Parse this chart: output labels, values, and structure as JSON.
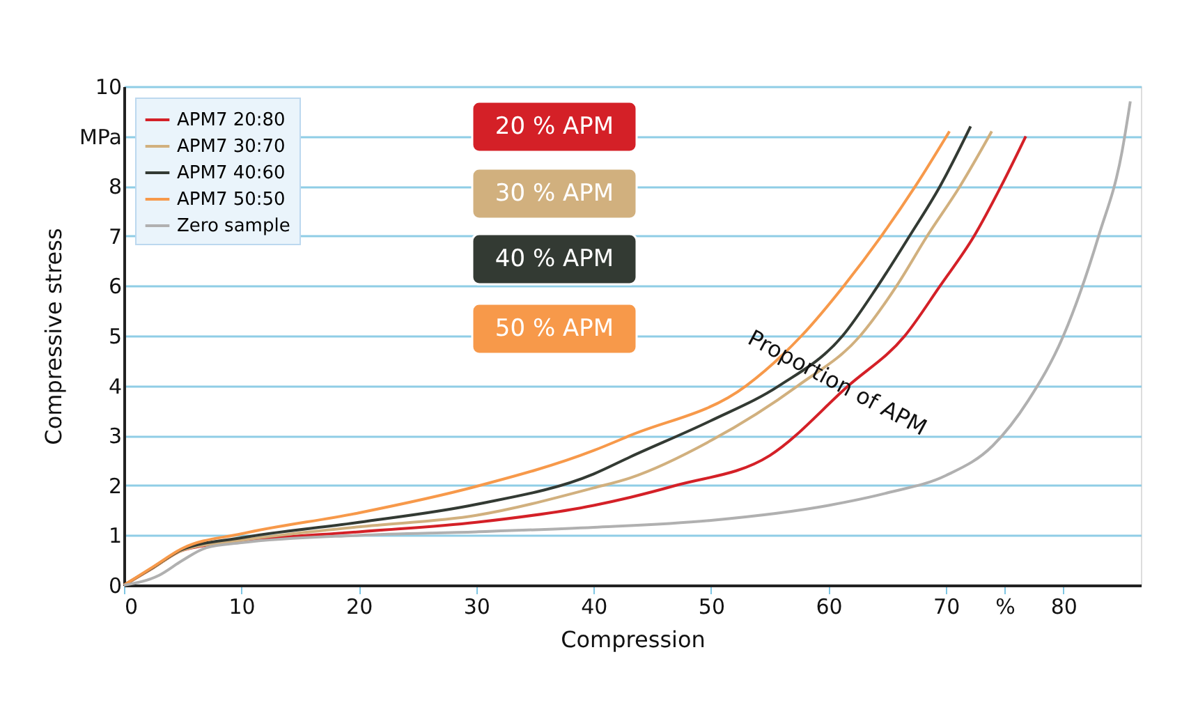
{
  "chart_data": {
    "type": "line",
    "xlabel": "Compression",
    "ylabel": "Compressive stress",
    "xlim": [
      0,
      86.6
    ],
    "ylim": [
      0,
      10
    ],
    "xticks": [
      0,
      10,
      20,
      30,
      40,
      50,
      60,
      70,
      {
        "value": 75,
        "label": "%"
      },
      80
    ],
    "yticks": [
      0,
      1,
      2,
      3,
      4,
      5,
      6,
      7,
      8,
      {
        "value": 9,
        "label": "MPa"
      },
      10
    ],
    "grid": "y",
    "legend": "top left",
    "line_style": "solid",
    "marker": "none",
    "annotations": [
      "20 % APM",
      "30 % APM",
      "40 % APM",
      "50 % APM",
      "Proportion of APM"
    ],
    "series": [
      {
        "name": "APM7 20:80",
        "color": "#d42027",
        "x": [
          0,
          2.5,
          5,
          10,
          20,
          30,
          40,
          43.1,
          47,
          55,
          61.7,
          66.5,
          69.5,
          72.4,
          74.7,
          76.8
        ],
        "values": [
          0,
          0.35,
          0.7,
          0.88,
          1.07,
          1.26,
          1.6,
          1.76,
          2.0,
          2.6,
          4,
          5,
          6,
          7,
          8,
          9.0
        ]
      },
      {
        "name": "APM7 30:70",
        "color": "#d1b07e",
        "x": [
          0,
          2.5,
          5,
          10,
          20,
          30,
          40,
          43.1,
          50,
          57.4,
          62.7,
          65.8,
          68.4,
          71.2,
          73.9
        ],
        "values": [
          0,
          0.35,
          0.7,
          0.9,
          1.17,
          1.4,
          1.95,
          2.15,
          2.9,
          4,
          5,
          6,
          7,
          8,
          9.1
        ]
      },
      {
        "name": "APM7 40:60",
        "color": "#333a33",
        "x": [
          0,
          2.5,
          5,
          10,
          20,
          30,
          40,
          43.1,
          50,
          55.8,
          61.2,
          64.2,
          66.9,
          69.5,
          72.1
        ],
        "values": [
          0,
          0.36,
          0.72,
          0.95,
          1.26,
          1.62,
          2.23,
          2.57,
          3.3,
          4,
          5,
          6,
          7,
          8,
          9.2
        ]
      },
      {
        "name": "APM7 50:50",
        "color": "#f7994a",
        "x": [
          0,
          2.5,
          5,
          10,
          20,
          30,
          40,
          43.1,
          53,
          57.7,
          61.3,
          64.5,
          67.4,
          70.3
        ],
        "values": [
          0,
          0.37,
          0.74,
          1.03,
          1.45,
          1.98,
          2.7,
          3,
          4,
          5,
          6,
          7,
          8,
          9.1
        ]
      },
      {
        "name": "Zero sample",
        "color": "#b0b0b0",
        "x": [
          0,
          3,
          5,
          7,
          10,
          20,
          30,
          40,
          50,
          60,
          65,
          70,
          74,
          77,
          80,
          83,
          85,
          85.7
        ],
        "values": [
          0,
          0.2,
          0.5,
          0.75,
          0.85,
          1.0,
          1.07,
          1.16,
          1.3,
          1.6,
          1.85,
          2.2,
          2.8,
          3.7,
          5,
          7,
          8.7,
          9.7
        ]
      }
    ]
  }
}
